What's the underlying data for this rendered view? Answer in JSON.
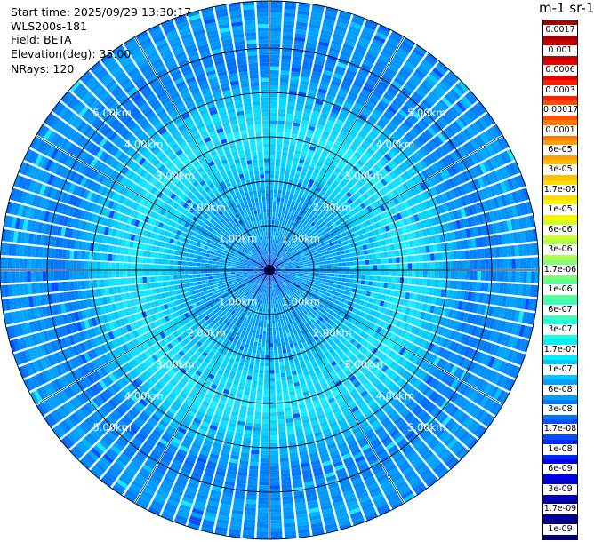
{
  "info": {
    "start_time": "Start time: 2025/09/29 13:30:17",
    "instrument": "WLS200s-181",
    "field": "Field: BETA",
    "elevation": "Elevation(deg): 35.00",
    "nrays": "NRays: 120"
  },
  "colorbar": {
    "title": "m-1 sr-1",
    "labels": [
      "0.0017",
      "0.001",
      "0.0006",
      "0.0003",
      "0.00017",
      "0.0001",
      "6e-05",
      "3e-05",
      "1.7e-05",
      "1e-05",
      "6e-06",
      "3e-06",
      "1.7e-06",
      "1e-06",
      "6e-07",
      "3e-07",
      "1.7e-07",
      "1e-07",
      "6e-08",
      "3e-08",
      "1.7e-08",
      "1e-08",
      "6e-09",
      "3e-09",
      "1.7e-09",
      "1e-09"
    ],
    "colors": [
      "#a00000",
      "#c80000",
      "#e60000",
      "#ff2000",
      "#ff5000",
      "#ff7800",
      "#ffa000",
      "#ffbe00",
      "#ffdc00",
      "#f5f500",
      "#d2ff28",
      "#aaff50",
      "#82ff78",
      "#5aff9b",
      "#3cffbe",
      "#1effe1",
      "#00f0ff",
      "#00c8ff",
      "#00a0ff",
      "#0078ff",
      "#0050ff",
      "#0028ff",
      "#0000f0",
      "#0000c8",
      "#0000a0",
      "#000078"
    ]
  },
  "chart_data": {
    "type": "heatmap",
    "projection": "polar PPI",
    "field": "BETA",
    "elevation_deg": 35.0,
    "nrays": 120,
    "range_rings_km": [
      1.0,
      2.0,
      3.0,
      4.0,
      5.0
    ],
    "ring_labels": [
      "1.00km",
      "2.00km",
      "3.00km",
      "4.00km",
      "5.00km"
    ],
    "radial_profile": [
      {
        "range_km": 0.0,
        "color": "#0000c8"
      },
      {
        "range_km": 0.3,
        "color": "#0078ff"
      },
      {
        "range_km": 0.8,
        "color": "#00a0ff"
      },
      {
        "range_km": 1.6,
        "color": "#00a0ff"
      },
      {
        "range_km": 2.3,
        "color": "#00d2ff"
      },
      {
        "range_km": 3.1,
        "color": "#1ee6ff"
      },
      {
        "range_km": 3.8,
        "color": "#00c8ff"
      },
      {
        "range_km": 4.6,
        "color": "#0078ff"
      },
      {
        "range_km": 5.6,
        "color": "#00a0ff"
      },
      {
        "range_km": 6.0,
        "color": "#0078ff"
      }
    ]
  }
}
